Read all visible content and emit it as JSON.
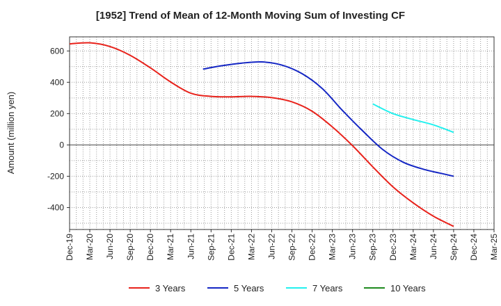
{
  "chart_data": {
    "type": "line",
    "title": "[1952]  Trend of Mean of 12-Month Moving Sum of Investing CF",
    "xlabel": "",
    "ylabel": "Amount (million yen)",
    "ylim": [
      -540,
      690
    ],
    "yticks": [
      600,
      400,
      200,
      0,
      -200,
      -400
    ],
    "ytick_labels": [
      "600",
      "400",
      "200",
      "0",
      "-200",
      "-400"
    ],
    "categories": [
      "Dec-19",
      "Mar-20",
      "Jun-20",
      "Sep-20",
      "Dec-20",
      "Mar-21",
      "Jun-21",
      "Sep-21",
      "Dec-21",
      "Mar-22",
      "Jun-22",
      "Sep-22",
      "Dec-22",
      "Mar-23",
      "Jun-23",
      "Sep-23",
      "Dec-23",
      "Mar-24",
      "Jun-24",
      "Sep-24",
      "Dec-24",
      "Mar-25"
    ],
    "grid": true,
    "legend_position": "bottom",
    "series": [
      {
        "name": "3 Years",
        "color": "#e8221b",
        "points": [
          [
            0,
            645
          ],
          [
            1,
            652
          ],
          [
            2,
            628
          ],
          [
            3,
            572
          ],
          [
            4,
            492
          ],
          [
            5,
            402
          ],
          [
            6,
            330
          ],
          [
            7,
            310
          ],
          [
            8,
            307
          ],
          [
            9,
            310
          ],
          [
            10,
            302
          ],
          [
            11,
            275
          ],
          [
            12,
            215
          ],
          [
            13,
            115
          ],
          [
            14,
            -5
          ],
          [
            15,
            -140
          ],
          [
            16,
            -268
          ],
          [
            17,
            -370
          ],
          [
            18,
            -455
          ],
          [
            19,
            -520
          ]
        ]
      },
      {
        "name": "5 Years",
        "color": "#1426c4",
        "points": [
          [
            6.6,
            484
          ],
          [
            7.5,
            505
          ],
          [
            8.5,
            522
          ],
          [
            9.5,
            530
          ],
          [
            10.5,
            510
          ],
          [
            11.5,
            455
          ],
          [
            12.5,
            360
          ],
          [
            13.5,
            220
          ],
          [
            14.5,
            90
          ],
          [
            15.5,
            -30
          ],
          [
            16.5,
            -110
          ],
          [
            17.5,
            -155
          ],
          [
            18.5,
            -185
          ],
          [
            19,
            -200
          ]
        ]
      },
      {
        "name": "7 Years",
        "color": "#22f0ee",
        "points": [
          [
            15,
            262
          ],
          [
            16,
            200
          ],
          [
            17,
            162
          ],
          [
            18,
            128
          ],
          [
            19,
            80
          ]
        ]
      },
      {
        "name": "10 Years",
        "color": "#1e8a1e",
        "points": []
      }
    ]
  }
}
